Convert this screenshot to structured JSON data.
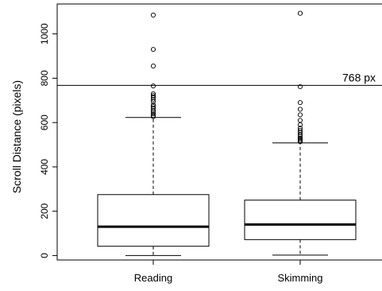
{
  "chart_data": {
    "type": "boxplot",
    "ylabel": "Scroll Distance (pixels)",
    "ylim": [
      -20,
      1135
    ],
    "yticks": [
      0,
      200,
      400,
      600,
      800,
      1000
    ],
    "categories": [
      "Reading",
      "Skimming"
    ],
    "series": [
      {
        "category": "Reading",
        "whisker_low": 0,
        "q1": 42,
        "median": 130,
        "q3": 275,
        "whisker_high": 623,
        "outliers": [
          1085,
          930,
          855,
          765,
          730,
          722,
          715,
          705,
          695,
          680,
          672,
          665,
          655,
          648,
          640,
          632,
          627
        ]
      },
      {
        "category": "Skimming",
        "whisker_low": 2,
        "q1": 72,
        "median": 140,
        "q3": 250,
        "whisker_high": 508,
        "outliers": [
          1093,
          762,
          690,
          660,
          635,
          610,
          590,
          575,
          565,
          555,
          545,
          538,
          530,
          524,
          518,
          514
        ]
      }
    ],
    "reference_line": {
      "value": 768,
      "label": "768 px"
    },
    "grid": false,
    "legend": "none"
  }
}
